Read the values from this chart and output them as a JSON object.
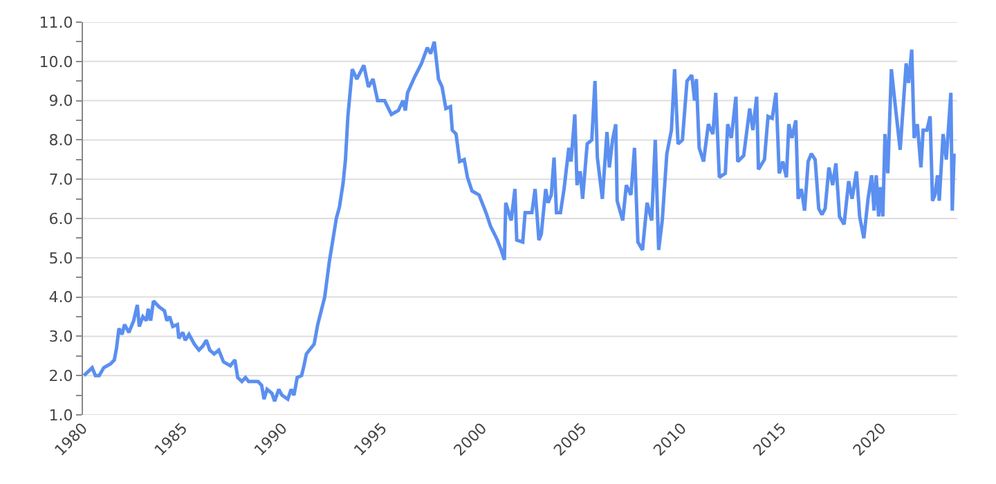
{
  "chart_data": {
    "type": "line",
    "x": [
      1980.05,
      1980.46,
      1980.62,
      1980.81,
      1981.04,
      1981.38,
      1981.57,
      1981.68,
      1981.8,
      1981.96,
      1982.08,
      1982.3,
      1982.54,
      1982.72,
      1982.82,
      1983.0,
      1983.18,
      1983.27,
      1983.39,
      1983.53,
      1983.81,
      1984.08,
      1984.2,
      1984.34,
      1984.5,
      1984.73,
      1984.8,
      1985.0,
      1985.12,
      1985.31,
      1985.58,
      1985.81,
      1986.0,
      1986.18,
      1986.35,
      1986.57,
      1986.8,
      1987.04,
      1987.38,
      1987.61,
      1987.75,
      1987.96,
      1988.14,
      1988.3,
      1988.77,
      1988.95,
      1989.07,
      1989.22,
      1989.46,
      1989.6,
      1989.81,
      1989.97,
      1990.26,
      1990.43,
      1990.57,
      1990.73,
      1990.95,
      1991.07,
      1991.19,
      1991.42,
      1991.58,
      1991.76,
      1992.11,
      1992.34,
      1992.5,
      1992.69,
      1992.85,
      1993.03,
      1993.15,
      1993.27,
      1993.49,
      1993.72,
      1994.07,
      1994.3,
      1994.53,
      1994.76,
      1995.11,
      1995.45,
      1995.8,
      1996.03,
      1996.15,
      1996.26,
      1996.61,
      1996.96,
      1997.25,
      1997.42,
      1997.6,
      1997.81,
      1997.99,
      1998.18,
      1998.41,
      1998.5,
      1998.69,
      1998.87,
      1999.1,
      1999.26,
      1999.49,
      1999.84,
      2000.19,
      2000.42,
      2000.57,
      2000.76,
      2000.95,
      2001.11,
      2001.18,
      2001.45,
      2001.64,
      2001.73,
      2002.03,
      2002.15,
      2002.49,
      2002.65,
      2002.84,
      2002.96,
      2003.18,
      2003.3,
      2003.46,
      2003.6,
      2003.72,
      2003.92,
      2004.1,
      2004.34,
      2004.45,
      2004.64,
      2004.75,
      2004.91,
      2005.03,
      2005.26,
      2005.49,
      2005.65,
      2005.77,
      2006.02,
      2006.25,
      2006.37,
      2006.53,
      2006.69,
      2006.76,
      2007.04,
      2007.22,
      2007.45,
      2007.63,
      2007.8,
      2008.03,
      2008.26,
      2008.49,
      2008.67,
      2008.84,
      2009.02,
      2009.25,
      2009.48,
      2009.64,
      2009.81,
      2010.03,
      2010.26,
      2010.5,
      2010.64,
      2010.73,
      2010.87,
      2011.09,
      2011.33,
      2011.56,
      2011.7,
      2011.88,
      2012.18,
      2012.3,
      2012.48,
      2012.71,
      2012.8,
      2013.1,
      2013.4,
      2013.56,
      2013.75,
      2013.84,
      2014.14,
      2014.32,
      2014.53,
      2014.72,
      2014.88,
      2015.06,
      2015.24,
      2015.36,
      2015.52,
      2015.71,
      2015.83,
      2015.99,
      2016.15,
      2016.33,
      2016.49,
      2016.68,
      2016.86,
      2017.02,
      2017.18,
      2017.37,
      2017.56,
      2017.72,
      2017.9,
      2018.13,
      2018.36,
      2018.53,
      2018.75,
      2018.91,
      2019.12,
      2019.33,
      2019.51,
      2019.63,
      2019.74,
      2019.86,
      2019.95,
      2020.07,
      2020.18,
      2020.32,
      2020.5,
      2020.71,
      2020.94,
      2021.24,
      2021.36,
      2021.52,
      2021.64,
      2021.8,
      2021.98,
      2022.09,
      2022.28,
      2022.44,
      2022.56,
      2022.68,
      2022.81,
      2022.9,
      2023.09,
      2023.25,
      2023.48,
      2023.55,
      2023.64
    ],
    "series": [
      {
        "color": "#5b8ff0",
        "values": [
          2.0,
          2.2,
          2.0,
          2.0,
          2.2,
          2.3,
          2.4,
          2.7,
          3.2,
          3.05,
          3.3,
          3.1,
          3.4,
          3.8,
          3.25,
          3.5,
          3.4,
          3.7,
          3.4,
          3.9,
          3.75,
          3.65,
          3.4,
          3.5,
          3.25,
          3.3,
          2.95,
          3.1,
          2.9,
          3.05,
          2.8,
          2.65,
          2.75,
          2.9,
          2.65,
          2.55,
          2.65,
          2.35,
          2.25,
          2.4,
          1.95,
          1.85,
          1.95,
          1.85,
          1.85,
          1.75,
          1.4,
          1.65,
          1.55,
          1.35,
          1.65,
          1.5,
          1.4,
          1.65,
          1.5,
          1.95,
          2.0,
          2.25,
          2.55,
          2.7,
          2.8,
          3.3,
          4.0,
          4.9,
          5.4,
          6.0,
          6.3,
          6.9,
          7.5,
          8.6,
          9.8,
          9.55,
          9.9,
          9.35,
          9.55,
          9.0,
          9.0,
          8.65,
          8.75,
          9.0,
          8.75,
          9.2,
          9.6,
          9.95,
          10.35,
          10.2,
          10.5,
          9.55,
          9.35,
          8.8,
          8.85,
          8.25,
          8.15,
          7.45,
          7.5,
          7.05,
          6.7,
          6.6,
          6.15,
          5.8,
          5.65,
          5.45,
          5.2,
          4.95,
          6.4,
          5.95,
          6.75,
          5.45,
          5.4,
          6.15,
          6.15,
          6.75,
          5.45,
          5.6,
          6.75,
          6.4,
          6.6,
          7.55,
          6.15,
          6.15,
          6.75,
          7.8,
          7.45,
          8.65,
          6.85,
          7.2,
          6.5,
          7.9,
          8.0,
          9.5,
          7.55,
          6.5,
          8.2,
          7.3,
          8.0,
          8.4,
          6.45,
          5.95,
          6.85,
          6.6,
          7.8,
          5.4,
          5.2,
          6.4,
          5.95,
          8.0,
          5.2,
          5.95,
          7.65,
          8.25,
          9.8,
          7.9,
          8.0,
          9.5,
          9.65,
          9.0,
          9.55,
          7.8,
          7.45,
          8.4,
          8.15,
          9.2,
          7.05,
          7.15,
          8.4,
          8.05,
          9.1,
          7.45,
          7.6,
          8.8,
          8.25,
          9.1,
          7.25,
          7.5,
          8.6,
          8.55,
          9.2,
          7.15,
          7.45,
          7.05,
          8.4,
          8.05,
          8.5,
          6.5,
          6.75,
          6.2,
          7.45,
          7.65,
          7.5,
          6.25,
          6.1,
          6.25,
          7.3,
          6.85,
          7.4,
          6.05,
          5.85,
          6.95,
          6.5,
          7.2,
          6.05,
          5.5,
          6.5,
          7.1,
          6.2,
          7.1,
          6.05,
          6.8,
          6.05,
          8.15,
          7.15,
          9.8,
          8.8,
          7.75,
          9.95,
          9.45,
          10.3,
          8.05,
          8.4,
          7.3,
          8.25,
          8.25,
          8.6,
          6.45,
          6.6,
          7.1,
          6.45,
          8.15,
          7.5,
          9.2,
          6.2,
          7.65
        ]
      }
    ],
    "xlim": [
      1980,
      2023.8
    ],
    "xticks": [
      1980,
      1985,
      1990,
      1995,
      2000,
      2005,
      2010,
      2015,
      2020
    ],
    "ylim": [
      1.0,
      11.0
    ],
    "yticks": [
      {
        "value": 1,
        "label": "1.0"
      },
      {
        "value": 1.5,
        "label": null
      },
      {
        "value": 2,
        "label": "2.0"
      },
      {
        "value": 2.5,
        "label": null
      },
      {
        "value": 3,
        "label": "3.0"
      },
      {
        "value": 3.5,
        "label": null
      },
      {
        "value": 4,
        "label": "4.0"
      },
      {
        "value": 4.5,
        "label": null
      },
      {
        "value": 5,
        "label": "5.0"
      },
      {
        "value": 5.5,
        "label": null
      },
      {
        "value": 6,
        "label": "6.0"
      },
      {
        "value": 6.5,
        "label": null
      },
      {
        "value": 7,
        "label": "7.0"
      },
      {
        "value": 7.5,
        "label": null
      },
      {
        "value": 8,
        "label": "8.0"
      },
      {
        "value": 8.5,
        "label": null
      },
      {
        "value": 9,
        "label": "9.0"
      },
      {
        "value": 9.5,
        "label": null
      },
      {
        "value": 10,
        "label": "10.0"
      },
      {
        "value": 10.5,
        "label": null
      },
      {
        "value": 11,
        "label": "11.0"
      }
    ],
    "grid": "y",
    "marker": "none",
    "line_style": "solid"
  }
}
